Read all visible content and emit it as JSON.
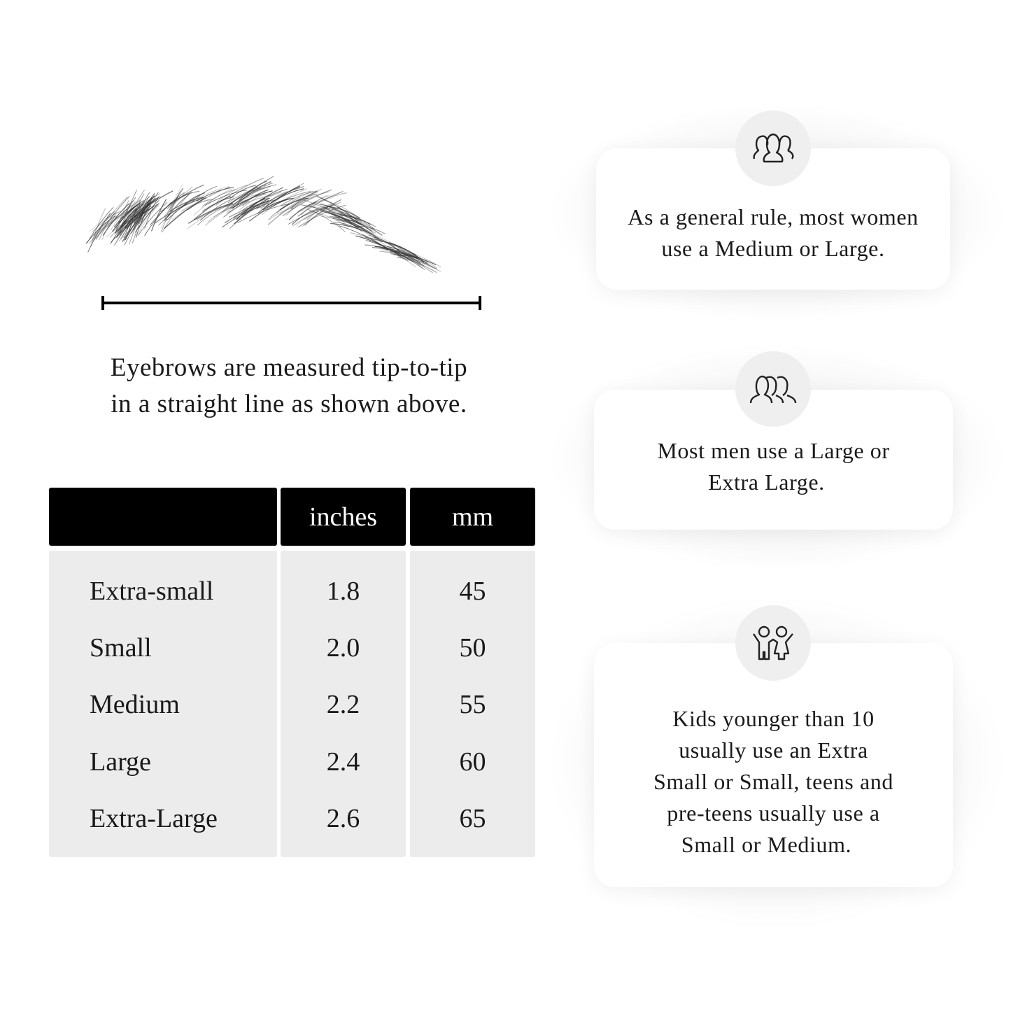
{
  "measurement": {
    "caption_line1": "Eyebrows are measured tip-to-tip",
    "caption_line2": "in a straight line as shown above."
  },
  "size_table": {
    "headers": [
      "",
      "inches",
      "mm"
    ],
    "rows": [
      {
        "size": "Extra-small",
        "inches": "1.8",
        "mm": "45"
      },
      {
        "size": "Small",
        "inches": "2.0",
        "mm": "50"
      },
      {
        "size": "Medium",
        "inches": "2.2",
        "mm": "55"
      },
      {
        "size": "Large",
        "inches": "2.4",
        "mm": "60"
      },
      {
        "size": "Extra-Large",
        "inches": "2.6",
        "mm": "65"
      }
    ]
  },
  "cards": [
    {
      "icon": "women-group-icon",
      "line1": "As a general rule, most women",
      "line2": "use a Medium or Large."
    },
    {
      "icon": "men-group-icon",
      "line1": "Most men use a Large or",
      "line2": "Extra Large."
    },
    {
      "icon": "kids-icon",
      "lines": [
        "Kids younger than 10",
        "usually use an Extra",
        "Small or Small, teens and",
        "pre-teens usually use a",
        "Small or Medium."
      ]
    }
  ],
  "colors": {
    "header_bg": "#000000",
    "body_bg": "#ececec",
    "circle_bg": "#efefef"
  }
}
